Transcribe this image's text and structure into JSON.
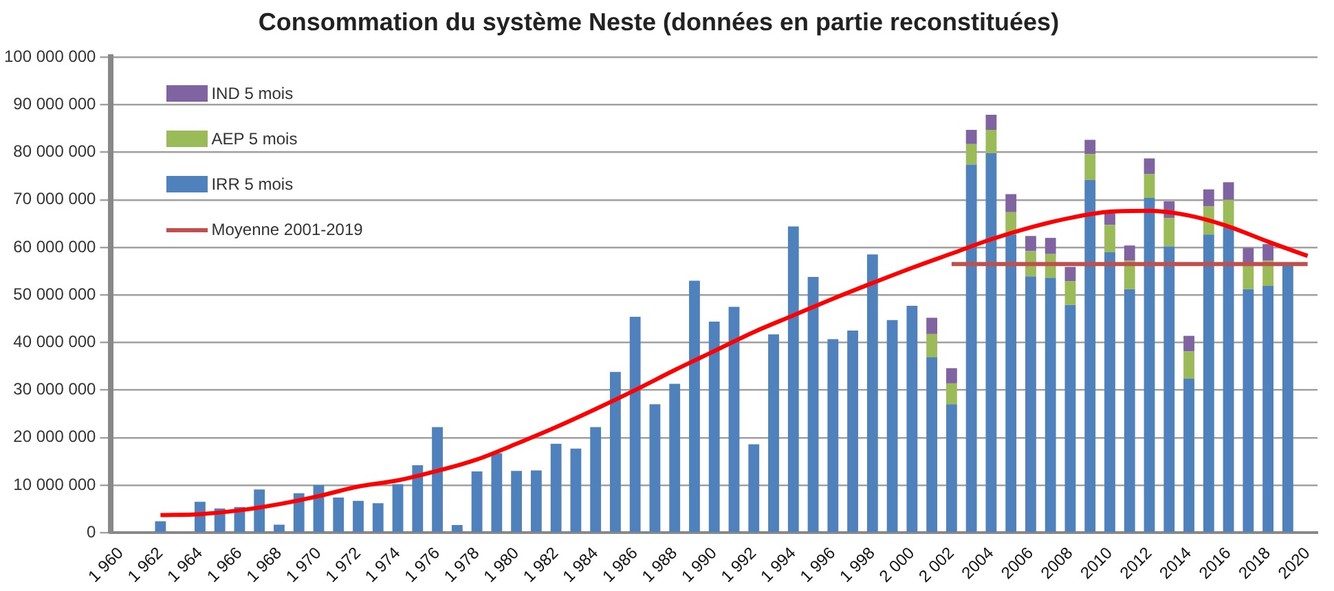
{
  "chart_data": {
    "type": "bar",
    "title": "Consommation du système Neste (données en partie reconstituées)",
    "categories": [
      "1 960",
      null,
      "1 962",
      null,
      "1 964",
      null,
      "1 966",
      null,
      "1 968",
      null,
      "1 970",
      null,
      "1 972",
      null,
      "1 974",
      null,
      "1 976",
      null,
      "1 978",
      null,
      "1 980",
      null,
      "1 982",
      null,
      "1 984",
      null,
      "1 986",
      null,
      "1 988",
      null,
      "1 990",
      null,
      "1 992",
      null,
      "1 994",
      null,
      "1 996",
      null,
      "1 998",
      null,
      "2 000",
      null,
      "2 002",
      null,
      "2004",
      null,
      "2006",
      null,
      "2008",
      null,
      "2010",
      null,
      "2012",
      null,
      "2014",
      null,
      "2016",
      null,
      "2018",
      null,
      "2020"
    ],
    "stacked": true,
    "series": [
      {
        "name": "IRR 5 mois",
        "color": "#4f81bd",
        "values": [
          null,
          null,
          2400000,
          null,
          6500000,
          5100000,
          5400000,
          9100000,
          1700000,
          8300000,
          10000000,
          7400000,
          6700000,
          6200000,
          10200000,
          14200000,
          22200000,
          1600000,
          12900000,
          16700000,
          13000000,
          13100000,
          18700000,
          17700000,
          22200000,
          33800000,
          45400000,
          27000000,
          31300000,
          53000000,
          44400000,
          47500000,
          18600000,
          41700000,
          64400000,
          53800000,
          40700000,
          42500000,
          58500000,
          44700000,
          47700000,
          36900000,
          27000000,
          77400000,
          79800000,
          62700000,
          53900000,
          53600000,
          47900000,
          74200000,
          59000000,
          51200000,
          70400000,
          60200000,
          32400000,
          62700000,
          64200000,
          51200000,
          51900000,
          56400000,
          null
        ]
      },
      {
        "name": "AEP 5 mois",
        "color": "#9bbb59",
        "values": [
          null,
          null,
          null,
          null,
          null,
          null,
          null,
          null,
          null,
          null,
          null,
          null,
          null,
          null,
          null,
          null,
          null,
          null,
          null,
          null,
          null,
          null,
          null,
          null,
          null,
          null,
          null,
          null,
          null,
          null,
          null,
          null,
          null,
          null,
          null,
          null,
          null,
          null,
          null,
          null,
          null,
          4900000,
          4400000,
          4300000,
          4900000,
          4700000,
          5300000,
          5000000,
          5000000,
          5400000,
          5700000,
          6000000,
          5000000,
          6000000,
          5700000,
          5900000,
          5800000,
          5000000,
          5300000,
          null,
          null
        ]
      },
      {
        "name": "IND 5 mois",
        "color": "#8064a2",
        "values": [
          null,
          null,
          null,
          null,
          null,
          null,
          null,
          null,
          null,
          null,
          null,
          null,
          null,
          null,
          null,
          null,
          null,
          null,
          null,
          null,
          null,
          null,
          null,
          null,
          null,
          null,
          null,
          null,
          null,
          null,
          null,
          null,
          null,
          null,
          null,
          null,
          null,
          null,
          null,
          null,
          null,
          3400000,
          3200000,
          3000000,
          3200000,
          3800000,
          3200000,
          3400000,
          3000000,
          3000000,
          2500000,
          3200000,
          3300000,
          3500000,
          3300000,
          3600000,
          3700000,
          3700000,
          3500000,
          null,
          null
        ]
      },
      {
        "name": "Moyenne 2001-2019",
        "type": "line",
        "color": "#c0504d",
        "values": [
          null,
          null,
          null,
          null,
          null,
          null,
          null,
          null,
          null,
          null,
          null,
          null,
          null,
          null,
          null,
          null,
          null,
          null,
          null,
          null,
          null,
          null,
          null,
          null,
          null,
          null,
          null,
          null,
          null,
          null,
          null,
          null,
          null,
          null,
          null,
          null,
          null,
          null,
          null,
          null,
          null,
          null,
          56500000,
          56500000,
          56500000,
          56500000,
          56500000,
          56500000,
          56500000,
          56500000,
          56500000,
          56500000,
          56500000,
          56500000,
          56500000,
          56500000,
          56500000,
          56500000,
          56500000,
          56500000,
          56500000
        ]
      },
      {
        "type": "line",
        "color": "#ff0000",
        "values": [
          null,
          null,
          3700000,
          null,
          3900000,
          null,
          4700000,
          null,
          6000000,
          null,
          7700000,
          null,
          9700000,
          null,
          11000000,
          null,
          13000000,
          null,
          15400000,
          null,
          18700000,
          null,
          22200000,
          null,
          26000000,
          null,
          30000000,
          null,
          34200000,
          null,
          38200000,
          null,
          42200000,
          null,
          45700000,
          null,
          49200000,
          null,
          52500000,
          null,
          55700000,
          null,
          58700000,
          null,
          61700000,
          null,
          64200000,
          null,
          66200000,
          null,
          67500000,
          null,
          67700000,
          null,
          66700000,
          null,
          64400000,
          null,
          61200000,
          null,
          58200000
        ]
      }
    ],
    "ylim": [
      0,
      100000000
    ],
    "yticks": [
      {
        "value": 0,
        "label": "0"
      },
      {
        "value": 10000000,
        "label": "10 000 000"
      },
      {
        "value": 20000000,
        "label": "20 000 000"
      },
      {
        "value": 30000000,
        "label": "30 000 000"
      },
      {
        "value": 40000000,
        "label": "40 000 000"
      },
      {
        "value": 50000000,
        "label": "50 000 000"
      },
      {
        "value": 60000000,
        "label": "60 000 000"
      },
      {
        "value": 70000000,
        "label": "70 000 000"
      },
      {
        "value": 80000000,
        "label": "80 000 000"
      },
      {
        "value": 90000000,
        "label": "90 000 000"
      },
      {
        "value": 100000000,
        "label": "100 000 000"
      }
    ],
    "grid": "y",
    "legend": "top left"
  }
}
